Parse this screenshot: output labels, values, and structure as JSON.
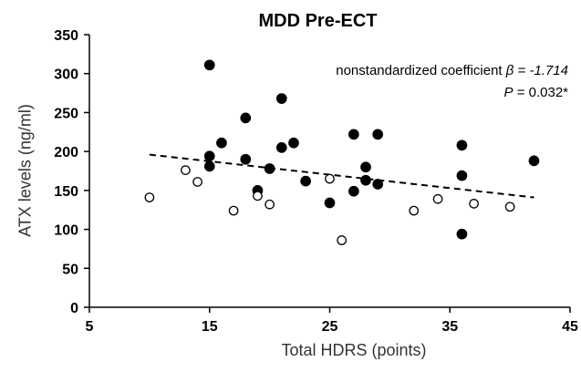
{
  "chart_data": {
    "type": "scatter",
    "title": "MDD Pre-ECT",
    "xlabel": "Total HDRS (points)",
    "ylabel": "ATX levels (ng/ml)",
    "xlim": [
      5,
      45
    ],
    "ylim": [
      0,
      350
    ],
    "xticks": [
      "5",
      "15",
      "25",
      "35",
      "45"
    ],
    "yticks": [
      "0",
      "50",
      "100",
      "150",
      "200",
      "250",
      "300",
      "350"
    ],
    "grid": false,
    "annotation": {
      "line1_prefix": "nonstandardized coefficient ",
      "beta_symbol": "β",
      "line1_value": " = -1.714",
      "p_symbol": "P",
      "line2_value": " = 0.032*"
    },
    "series": [
      {
        "marker": "filled",
        "color": "#000000",
        "points": [
          [
            15,
            311
          ],
          [
            15,
            194
          ],
          [
            15,
            181
          ],
          [
            16,
            211
          ],
          [
            18,
            243
          ],
          [
            18,
            190
          ],
          [
            19,
            150
          ],
          [
            20,
            178
          ],
          [
            21,
            268
          ],
          [
            21,
            205
          ],
          [
            22,
            211
          ],
          [
            23,
            162
          ],
          [
            25,
            134
          ],
          [
            27,
            222
          ],
          [
            27,
            149
          ],
          [
            28,
            180
          ],
          [
            28,
            163
          ],
          [
            29,
            222
          ],
          [
            29,
            158
          ],
          [
            36,
            208
          ],
          [
            36,
            169
          ],
          [
            36,
            94
          ],
          [
            42,
            188
          ]
        ]
      },
      {
        "marker": "open",
        "color": "#000000",
        "points": [
          [
            10,
            141
          ],
          [
            13,
            176
          ],
          [
            14,
            161
          ],
          [
            17,
            124
          ],
          [
            19,
            143
          ],
          [
            20,
            132
          ],
          [
            25,
            165
          ],
          [
            26,
            86
          ],
          [
            32,
            124
          ],
          [
            34,
            139
          ],
          [
            37,
            133
          ],
          [
            40,
            129
          ]
        ]
      }
    ],
    "trendline": {
      "style": "dashed",
      "x": [
        10,
        42
      ],
      "y": [
        196,
        141
      ]
    }
  }
}
